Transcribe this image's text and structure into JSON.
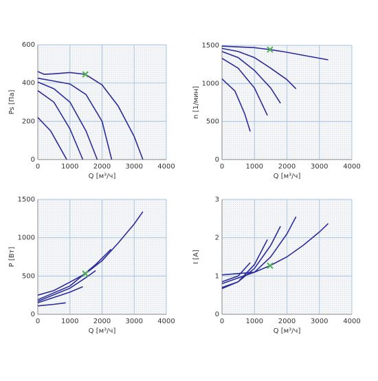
{
  "chart_data": [
    {
      "type": "line",
      "ylabel": "Ps [Па]",
      "xlabel": "Q [м³/ч]",
      "color": "#2b2b9a",
      "grid": true,
      "xlim": [
        0,
        4000
      ],
      "xticks": [
        0,
        1000,
        2000,
        3000,
        4000
      ],
      "ylim": [
        0,
        600
      ],
      "yticks": [
        0,
        200,
        400,
        600
      ],
      "series": [
        {
          "x": [
            0,
            200,
            500,
            1000,
            1480,
            2000,
            2500,
            3000,
            3270
          ],
          "values": [
            460,
            445,
            448,
            455,
            445,
            390,
            280,
            120,
            0
          ]
        },
        {
          "x": [
            0,
            500,
            1000,
            1500,
            2000,
            2300
          ],
          "values": [
            425,
            410,
            395,
            340,
            200,
            0
          ]
        },
        {
          "x": [
            0,
            500,
            1000,
            1500,
            1850
          ],
          "values": [
            405,
            370,
            300,
            150,
            0
          ]
        },
        {
          "x": [
            0,
            500,
            1000,
            1400
          ],
          "values": [
            360,
            300,
            160,
            0
          ]
        },
        {
          "x": [
            0,
            400,
            700,
            900
          ],
          "values": [
            220,
            150,
            60,
            0
          ]
        }
      ],
      "marker": {
        "x": 1480,
        "y": 445,
        "color": "#4caf50"
      }
    },
    {
      "type": "line",
      "ylabel": "n [1/мин]",
      "xlabel": "Q [м³/ч]",
      "color": "#2b2b9a",
      "grid": true,
      "xlim": [
        0,
        4000
      ],
      "xticks": [
        0,
        1000,
        2000,
        3000,
        4000
      ],
      "ylim": [
        0,
        1500
      ],
      "yticks": [
        0,
        500,
        1000,
        1500
      ],
      "series": [
        {
          "x": [
            0,
            1000,
            1480,
            2000,
            2500,
            3270
          ],
          "values": [
            1490,
            1470,
            1445,
            1410,
            1370,
            1310
          ]
        },
        {
          "x": [
            0,
            500,
            1000,
            1500,
            2000,
            2280
          ],
          "values": [
            1460,
            1420,
            1340,
            1200,
            1050,
            930
          ]
        },
        {
          "x": [
            0,
            500,
            1000,
            1500,
            1800
          ],
          "values": [
            1420,
            1340,
            1170,
            940,
            740
          ]
        },
        {
          "x": [
            0,
            500,
            1000,
            1400
          ],
          "values": [
            1330,
            1200,
            940,
            580
          ]
        },
        {
          "x": [
            0,
            400,
            700,
            870
          ],
          "values": [
            1060,
            900,
            600,
            370
          ]
        }
      ],
      "marker": {
        "x": 1480,
        "y": 1445,
        "color": "#4caf50"
      }
    },
    {
      "type": "line",
      "ylabel": "P [Вт]",
      "xlabel": "Q [м³/ч]",
      "color": "#2b2b9a",
      "grid": true,
      "xlim": [
        0,
        4000
      ],
      "xticks": [
        0,
        1000,
        2000,
        3000,
        4000
      ],
      "ylim": [
        0,
        1500
      ],
      "yticks": [
        0,
        500,
        1000,
        1500
      ],
      "series": [
        {
          "x": [
            0,
            500,
            1000,
            1480,
            2000,
            2500,
            3000,
            3270
          ],
          "values": [
            250,
            310,
            420,
            530,
            700,
            930,
            1180,
            1340
          ]
        },
        {
          "x": [
            0,
            1000,
            1800,
            2280
          ],
          "values": [
            190,
            370,
            650,
            850
          ]
        },
        {
          "x": [
            0,
            1000,
            1500,
            1800
          ],
          "values": [
            170,
            340,
            480,
            570
          ]
        },
        {
          "x": [
            0,
            500,
            1000,
            1400
          ],
          "values": [
            150,
            220,
            290,
            360
          ]
        },
        {
          "x": [
            0,
            500,
            870
          ],
          "values": [
            110,
            130,
            150
          ]
        }
      ],
      "marker": {
        "x": 1480,
        "y": 530,
        "color": "#4caf50"
      }
    },
    {
      "type": "line",
      "ylabel": "I [A]",
      "xlabel": "Q [м³/ч]",
      "color": "#2b2b9a",
      "grid": true,
      "xlim": [
        0,
        4000
      ],
      "xticks": [
        0,
        1000,
        2000,
        3000,
        4000
      ],
      "ylim": [
        0,
        3
      ],
      "yticks": [
        0,
        1,
        2,
        3
      ],
      "series": [
        {
          "x": [
            0,
            1000,
            1480,
            2000,
            2500,
            3000,
            3270
          ],
          "values": [
            1.03,
            1.1,
            1.27,
            1.5,
            1.8,
            2.15,
            2.37
          ]
        },
        {
          "x": [
            0,
            1000,
            1500,
            2000,
            2280
          ],
          "values": [
            0.8,
            1.1,
            1.5,
            2.1,
            2.55
          ]
        },
        {
          "x": [
            0,
            500,
            1000,
            1500,
            1800
          ],
          "values": [
            0.7,
            0.85,
            1.2,
            1.8,
            2.3
          ]
        },
        {
          "x": [
            0,
            500,
            1000,
            1400
          ],
          "values": [
            0.67,
            0.85,
            1.3,
            1.95
          ]
        },
        {
          "x": [
            0,
            500,
            870
          ],
          "values": [
            0.85,
            1.0,
            1.35
          ]
        }
      ],
      "marker": {
        "x": 1480,
        "y": 1.27,
        "color": "#4caf50"
      }
    }
  ]
}
